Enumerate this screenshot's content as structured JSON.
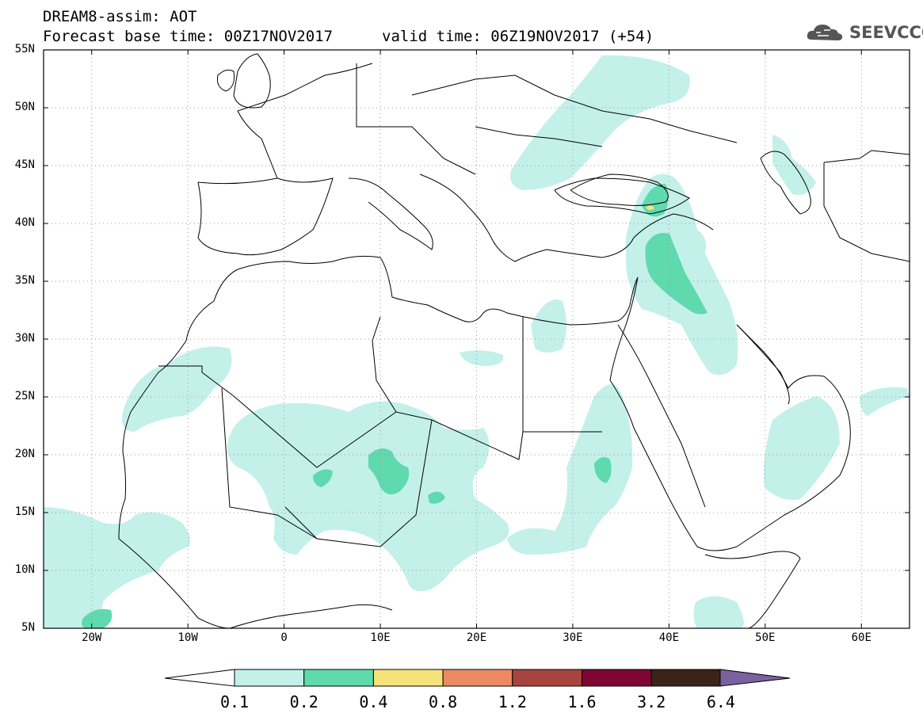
{
  "header": {
    "line1": "DREAM8-assim: AOT",
    "line2": "Forecast base time: 00Z17NOV2017",
    "valid": "valid time: 06Z19NOV2017 (+54)"
  },
  "logo": {
    "text": "SEEVCCC",
    "icon": "cloud-icon"
  },
  "map": {
    "lat_labels": [
      "55N",
      "50N",
      "45N",
      "40N",
      "35N",
      "30N",
      "25N",
      "20N",
      "15N",
      "10N",
      "5N"
    ],
    "lon_labels": [
      "20W",
      "10W",
      "0",
      "10E",
      "20E",
      "30E",
      "40E",
      "50E",
      "60E"
    ],
    "lon_range": [
      -25,
      65
    ],
    "lat_range": [
      5,
      55
    ],
    "grid": "dotted"
  },
  "colorbar": {
    "labels": [
      "0.1",
      "0.2",
      "0.4",
      "0.8",
      "1.2",
      "1.6",
      "3.2",
      "6.4"
    ],
    "colors": [
      "#ffffff",
      "#c4f0ea",
      "#5fd9ae",
      "#f5e37a",
      "#ec8a63",
      "#a6453d",
      "#7e0631",
      "#3a2317",
      "#7c61a0"
    ]
  }
}
